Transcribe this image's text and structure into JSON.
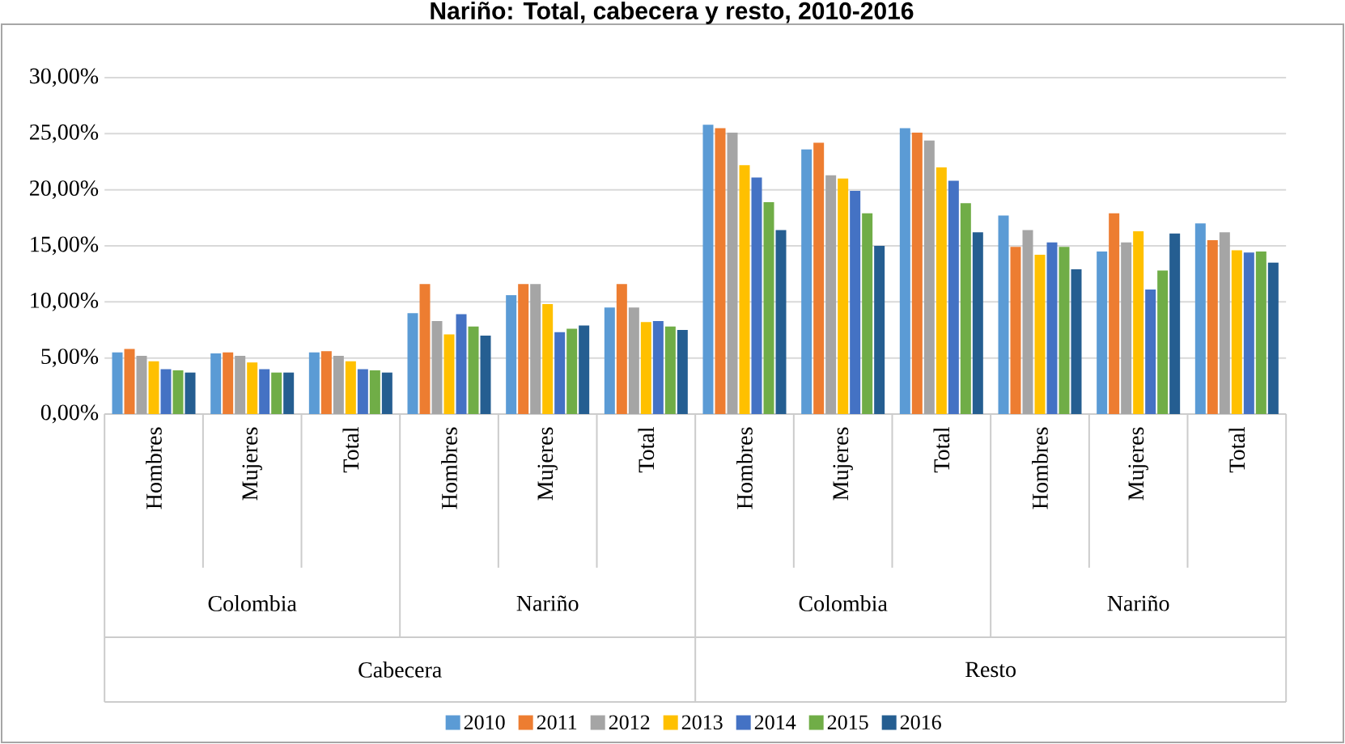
{
  "chart_data": {
    "type": "bar",
    "title": "Nariño: Total, cabecera y resto, 2010-2016",
    "categories": [
      "Hombres",
      "Mujeres",
      "Total",
      "Hombres",
      "Mujeres",
      "Total",
      "Hombres",
      "Mujeres",
      "Total",
      "Hombres",
      "Mujeres",
      "Total"
    ],
    "annotations": [
      "Colombia",
      "Nariño",
      "Colombia",
      "Nariño",
      "Cabecera",
      "Resto"
    ],
    "series": [
      {
        "name": "2010",
        "color": "#5b9bd5",
        "values": [
          5.5,
          5.4,
          5.5,
          9.0,
          10.6,
          9.5,
          25.8,
          23.6,
          25.5,
          17.7,
          14.5,
          17.0
        ]
      },
      {
        "name": "2011",
        "color": "#ed7d31",
        "values": [
          5.8,
          5.5,
          5.6,
          11.6,
          11.6,
          11.6,
          25.5,
          24.2,
          25.1,
          14.9,
          17.9,
          15.5
        ]
      },
      {
        "name": "2012",
        "color": "#a5a5a5",
        "values": [
          5.2,
          5.2,
          5.2,
          8.3,
          11.6,
          9.5,
          25.1,
          21.3,
          24.4,
          16.4,
          15.3,
          16.2
        ]
      },
      {
        "name": "2013",
        "color": "#ffc000",
        "values": [
          4.7,
          4.6,
          4.7,
          7.1,
          9.8,
          8.2,
          22.2,
          21.0,
          22.0,
          14.2,
          16.3,
          14.6
        ]
      },
      {
        "name": "2014",
        "color": "#4472c4",
        "values": [
          4.0,
          4.0,
          4.0,
          8.9,
          7.3,
          8.3,
          21.1,
          19.9,
          20.8,
          15.3,
          11.1,
          14.4
        ]
      },
      {
        "name": "2015",
        "color": "#70ad47",
        "values": [
          3.9,
          3.7,
          3.9,
          7.8,
          7.6,
          7.8,
          18.9,
          17.9,
          18.8,
          14.9,
          12.8,
          14.5
        ]
      },
      {
        "name": "2016",
        "color": "#255e91",
        "values": [
          3.7,
          3.7,
          3.7,
          7.0,
          7.9,
          7.5,
          16.4,
          15.0,
          16.2,
          12.9,
          16.1,
          13.5
        ]
      }
    ],
    "ylim": [
      0,
      30
    ],
    "yticks": [
      {
        "value": 0,
        "label": "0,00%"
      },
      {
        "value": 5,
        "label": "5,00%"
      },
      {
        "value": 10,
        "label": "10,00%"
      },
      {
        "value": 15,
        "label": "15,00%"
      },
      {
        "value": 20,
        "label": "20,00%"
      },
      {
        "value": 25,
        "label": "25,00%"
      },
      {
        "value": 30,
        "label": "30,00%"
      }
    ],
    "grid": "y",
    "legend": "bottom"
  }
}
